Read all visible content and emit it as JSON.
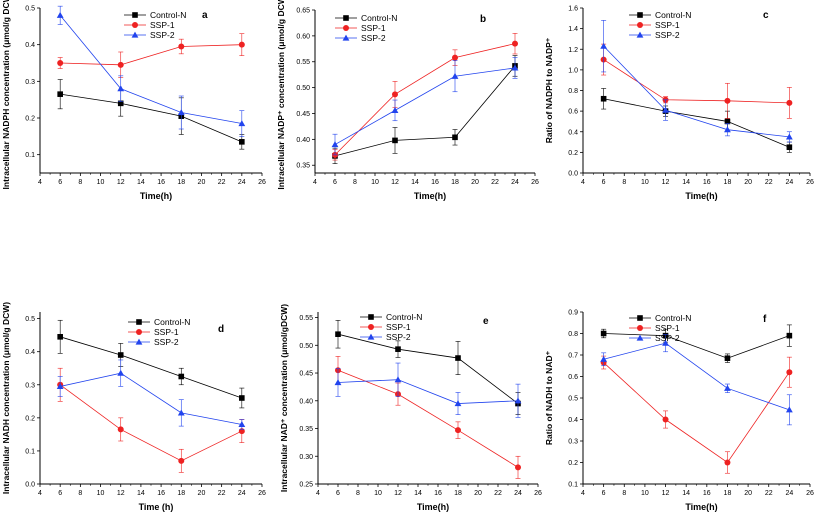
{
  "colors": {
    "Control-N": "#000000",
    "SSP-1": "#ee2222",
    "SSP-2": "#2244ee"
  },
  "markers": {
    "Control-N": "square",
    "SSP-1": "circle",
    "SSP-2": "triangle"
  },
  "chart_data": [
    {
      "id": "a",
      "type": "line",
      "panel_label": "a",
      "ylabel": "Intracellular NADPH concentration (μmol/g DCW)",
      "xlabel": "Time(h)",
      "xlim": [
        4,
        26
      ],
      "xticks": [
        "4",
        "6",
        "8",
        "10",
        "12",
        "14",
        "16",
        "18",
        "20",
        "22",
        "24",
        "26"
      ],
      "ylim": [
        0.05,
        0.5
      ],
      "yticks": [
        "0.1",
        "0.2",
        "0.3",
        "0.4",
        "0.5"
      ],
      "ytick_values": [
        0.1,
        0.2,
        0.3,
        0.4,
        0.5
      ],
      "x": [
        6,
        12,
        18,
        24
      ],
      "legend": [
        "Control-N",
        "SSP-1",
        "SSP-2"
      ],
      "series": [
        {
          "name": "Control-N",
          "values": [
            0.265,
            0.24,
            0.205,
            0.135
          ],
          "errors": [
            0.04,
            0.035,
            0.05,
            0.02
          ]
        },
        {
          "name": "SSP-1",
          "values": [
            0.35,
            0.345,
            0.395,
            0.4
          ],
          "errors": [
            0.015,
            0.035,
            0.02,
            0.03
          ]
        },
        {
          "name": "SSP-2",
          "values": [
            0.48,
            0.28,
            0.215,
            0.185
          ],
          "errors": [
            0.025,
            0.035,
            0.045,
            0.035
          ]
        }
      ]
    },
    {
      "id": "b",
      "type": "line",
      "panel_label": "b",
      "ylabel": "Intracellular NADP⁺ concentration (μmol/g DCW)",
      "xlabel": "Time(h)",
      "xlim": [
        4,
        26
      ],
      "xticks": [
        "4",
        "6",
        "8",
        "10",
        "12",
        "14",
        "16",
        "18",
        "20",
        "22",
        "24",
        "26"
      ],
      "ylim": [
        0.335,
        0.65
      ],
      "yticks": [
        "0.35",
        "0.40",
        "0.45",
        "0.50",
        "0.55",
        "0.60",
        "0.65"
      ],
      "ytick_values": [
        0.35,
        0.4,
        0.45,
        0.5,
        0.55,
        0.6,
        0.65
      ],
      "x": [
        6,
        12,
        18,
        24
      ],
      "legend": [
        "Control-N",
        "SSP-1",
        "SSP-2"
      ],
      "series": [
        {
          "name": "Control-N",
          "values": [
            0.368,
            0.398,
            0.404,
            0.542
          ],
          "errors": [
            0.015,
            0.025,
            0.015,
            0.02
          ]
        },
        {
          "name": "SSP-1",
          "values": [
            0.37,
            0.487,
            0.558,
            0.585
          ],
          "errors": [
            0.01,
            0.025,
            0.015,
            0.02
          ]
        },
        {
          "name": "SSP-2",
          "values": [
            0.39,
            0.456,
            0.522,
            0.538
          ],
          "errors": [
            0.02,
            0.02,
            0.03,
            0.02
          ]
        }
      ]
    },
    {
      "id": "c",
      "type": "line",
      "panel_label": "c",
      "ylabel": "Ratio of NADPH to NADP⁺",
      "xlabel": "Time(h)",
      "xlim": [
        4,
        26
      ],
      "xticks": [
        "4",
        "6",
        "8",
        "10",
        "12",
        "14",
        "16",
        "18",
        "20",
        "22",
        "24",
        "26"
      ],
      "ylim": [
        0.0,
        1.6
      ],
      "yticks": [
        "0.0",
        "0.2",
        "0.4",
        "0.6",
        "0.8",
        "1.0",
        "1.2",
        "1.4",
        "1.6"
      ],
      "ytick_values": [
        0,
        0.2,
        0.4,
        0.6,
        0.8,
        1.0,
        1.2,
        1.4,
        1.6
      ],
      "x": [
        6,
        12,
        18,
        24
      ],
      "legend": [
        "Control-N",
        "SSP-1",
        "SSP-2"
      ],
      "series": [
        {
          "name": "Control-N",
          "values": [
            0.72,
            0.6,
            0.5,
            0.25
          ],
          "errors": [
            0.1,
            0.05,
            0.1,
            0.05
          ]
        },
        {
          "name": "SSP-1",
          "values": [
            1.1,
            0.71,
            0.7,
            0.68
          ],
          "errors": [
            0.15,
            0.03,
            0.17,
            0.15
          ]
        },
        {
          "name": "SSP-2",
          "values": [
            1.23,
            0.61,
            0.42,
            0.35
          ],
          "errors": [
            0.25,
            0.1,
            0.06,
            0.05
          ]
        }
      ]
    },
    {
      "id": "d",
      "type": "line",
      "panel_label": "d",
      "ylabel": "Intracellular NADH concentration (μmol/g DCW)",
      "xlabel": "Time (h)",
      "xlim": [
        4,
        26
      ],
      "xticks": [
        "4",
        "6",
        "8",
        "10",
        "12",
        "14",
        "16",
        "18",
        "20",
        "22",
        "24",
        "26"
      ],
      "ylim": [
        0.0,
        0.52
      ],
      "yticks": [
        "0.0",
        "0.1",
        "0.2",
        "0.3",
        "0.4",
        "0.5"
      ],
      "ytick_values": [
        0,
        0.1,
        0.2,
        0.3,
        0.4,
        0.5
      ],
      "x": [
        6,
        12,
        18,
        24
      ],
      "legend": [
        "Control-N",
        "SSP-1",
        "SSP-2"
      ],
      "series": [
        {
          "name": "Control-N",
          "values": [
            0.445,
            0.39,
            0.325,
            0.26
          ],
          "errors": [
            0.05,
            0.035,
            0.025,
            0.03
          ]
        },
        {
          "name": "SSP-1",
          "values": [
            0.3,
            0.165,
            0.07,
            0.16
          ],
          "errors": [
            0.05,
            0.035,
            0.035,
            0.035
          ]
        },
        {
          "name": "SSP-2",
          "values": [
            0.295,
            0.335,
            0.215,
            0.18
          ],
          "errors": [
            0.03,
            0.04,
            0.04,
            0.015
          ]
        }
      ]
    },
    {
      "id": "e",
      "type": "line",
      "panel_label": "e",
      "ylabel": "Intracellular NAD⁺ concentration (μmol/gDCW)",
      "xlabel": "Time(h)",
      "xlim": [
        4,
        26
      ],
      "xticks": [
        "4",
        "6",
        "8",
        "10",
        "12",
        "14",
        "16",
        "18",
        "20",
        "22",
        "24",
        "26"
      ],
      "ylim": [
        0.25,
        0.56
      ],
      "yticks": [
        "0.25",
        "0.30",
        "0.35",
        "0.40",
        "0.45",
        "0.50",
        "0.55"
      ],
      "ytick_values": [
        0.25,
        0.3,
        0.35,
        0.4,
        0.45,
        0.5,
        0.55
      ],
      "x": [
        6,
        12,
        18,
        24
      ],
      "legend": [
        "Control-N",
        "SSP-1",
        "SSP-2"
      ],
      "series": [
        {
          "name": "Control-N",
          "values": [
            0.52,
            0.493,
            0.477,
            0.395
          ],
          "errors": [
            0.025,
            0.015,
            0.03,
            0.02
          ]
        },
        {
          "name": "SSP-1",
          "values": [
            0.455,
            0.412,
            0.347,
            0.28
          ],
          "errors": [
            0.025,
            0.02,
            0.015,
            0.02
          ]
        },
        {
          "name": "SSP-2",
          "values": [
            0.433,
            0.438,
            0.395,
            0.4
          ],
          "errors": [
            0.025,
            0.03,
            0.02,
            0.03
          ]
        }
      ]
    },
    {
      "id": "f",
      "type": "line",
      "panel_label": "f",
      "ylabel": "Ratio of NADH to NAD⁺",
      "xlabel": "Time(h)",
      "xlim": [
        4,
        26
      ],
      "xticks": [
        "4",
        "6",
        "8",
        "10",
        "12",
        "14",
        "16",
        "18",
        "20",
        "22",
        "24",
        "26"
      ],
      "ylim": [
        0.1,
        0.9
      ],
      "yticks": [
        "0.1",
        "0.2",
        "0.3",
        "0.4",
        "0.5",
        "0.6",
        "0.7",
        "0.8",
        "0.9"
      ],
      "ytick_values": [
        0.1,
        0.2,
        0.3,
        0.4,
        0.5,
        0.6,
        0.7,
        0.8,
        0.9
      ],
      "x": [
        6,
        12,
        18,
        24
      ],
      "legend": [
        "Control-N",
        "SSP-1",
        "SSP-2"
      ],
      "series": [
        {
          "name": "Control-N",
          "values": [
            0.8,
            0.79,
            0.685,
            0.79
          ],
          "errors": [
            0.02,
            0.03,
            0.02,
            0.05
          ]
        },
        {
          "name": "SSP-1",
          "values": [
            0.665,
            0.4,
            0.2,
            0.62
          ],
          "errors": [
            0.03,
            0.04,
            0.05,
            0.07
          ]
        },
        {
          "name": "SSP-2",
          "values": [
            0.68,
            0.755,
            0.545,
            0.445
          ],
          "errors": [
            0.03,
            0.04,
            0.02,
            0.07
          ]
        }
      ]
    }
  ]
}
